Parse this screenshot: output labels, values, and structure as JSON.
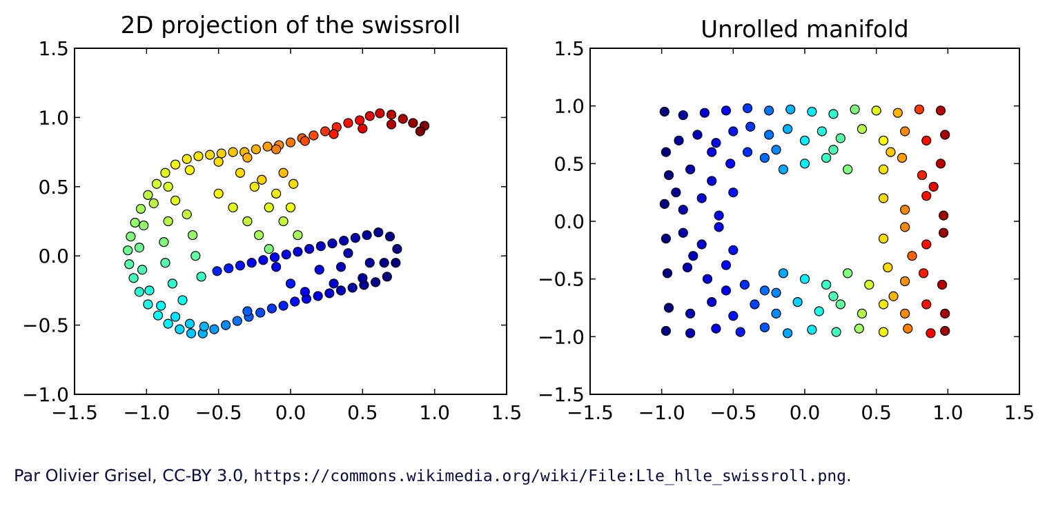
{
  "chart_data": [
    {
      "type": "scatter",
      "title": "2D projection of the swissroll",
      "xlabel": "",
      "ylabel": "",
      "xlim": [
        -1.5,
        1.5
      ],
      "ylim": [
        -1.0,
        1.5
      ],
      "xticks": [
        "−1.5",
        "−1.0",
        "−0.5",
        "0.0",
        "0.5",
        "1.0",
        "1.5"
      ],
      "xtick_values": [
        -1.5,
        -1.0,
        -0.5,
        0.0,
        0.5,
        1.0,
        1.5
      ],
      "yticks": [
        "−1.0",
        "−0.5",
        "0.0",
        "0.5",
        "1.0",
        "1.5"
      ],
      "ytick_values": [
        -1.0,
        -0.5,
        0.0,
        0.5,
        1.0,
        1.5
      ],
      "grid": false,
      "colormap": "jet",
      "points": [
        [
          0.93,
          0.94,
          1.0
        ],
        [
          0.85,
          0.96,
          0.98
        ],
        [
          0.78,
          0.99,
          0.96
        ],
        [
          0.7,
          1.02,
          0.94
        ],
        [
          0.62,
          1.03,
          0.92
        ],
        [
          0.55,
          1.01,
          0.9
        ],
        [
          0.48,
          0.98,
          0.88
        ],
        [
          0.4,
          0.96,
          0.86
        ],
        [
          0.32,
          0.93,
          0.84
        ],
        [
          0.24,
          0.9,
          0.82
        ],
        [
          0.16,
          0.87,
          0.8
        ],
        [
          0.08,
          0.85,
          0.78
        ],
        [
          0.0,
          0.82,
          0.76
        ],
        [
          -0.08,
          0.8,
          0.74
        ],
        [
          -0.16,
          0.79,
          0.72
        ],
        [
          -0.24,
          0.77,
          0.7
        ],
        [
          -0.32,
          0.75,
          0.69
        ],
        [
          -0.4,
          0.75,
          0.68
        ],
        [
          -0.48,
          0.74,
          0.67
        ],
        [
          -0.56,
          0.73,
          0.66
        ],
        [
          -0.64,
          0.72,
          0.65
        ],
        [
          -0.72,
          0.7,
          0.64
        ],
        [
          -0.8,
          0.66,
          0.62
        ],
        [
          -0.87,
          0.6,
          0.6
        ],
        [
          -0.93,
          0.52,
          0.58
        ],
        [
          -0.99,
          0.44,
          0.56
        ],
        [
          -1.04,
          0.34,
          0.54
        ],
        [
          -1.08,
          0.24,
          0.52
        ],
        [
          -1.11,
          0.14,
          0.5
        ],
        [
          -1.13,
          0.04,
          0.48
        ],
        [
          -1.12,
          -0.06,
          0.46
        ],
        [
          -1.09,
          -0.16,
          0.44
        ],
        [
          -1.05,
          -0.26,
          0.42
        ],
        [
          -0.99,
          -0.35,
          0.4
        ],
        [
          -0.92,
          -0.43,
          0.38
        ],
        [
          -0.85,
          -0.49,
          0.36
        ],
        [
          -0.77,
          -0.53,
          0.34
        ],
        [
          -0.69,
          -0.56,
          0.32
        ],
        [
          -0.61,
          -0.56,
          0.3
        ],
        [
          -0.53,
          -0.53,
          0.28
        ],
        [
          -0.45,
          -0.5,
          0.26
        ],
        [
          -0.37,
          -0.47,
          0.24
        ],
        [
          -0.29,
          -0.44,
          0.22
        ],
        [
          -0.21,
          -0.41,
          0.2
        ],
        [
          -0.13,
          -0.38,
          0.18
        ],
        [
          -0.05,
          -0.36,
          0.16
        ],
        [
          0.03,
          -0.33,
          0.14
        ],
        [
          0.11,
          -0.31,
          0.12
        ],
        [
          0.19,
          -0.29,
          0.1
        ],
        [
          0.27,
          -0.27,
          0.08
        ],
        [
          0.35,
          -0.25,
          0.06
        ],
        [
          0.43,
          -0.23,
          0.04
        ],
        [
          0.51,
          -0.21,
          0.02
        ],
        [
          0.59,
          -0.19,
          0.01
        ],
        [
          0.67,
          -0.15,
          0.0
        ],
        [
          0.73,
          -0.05,
          0.0
        ],
        [
          0.74,
          0.05,
          0.0
        ],
        [
          0.69,
          0.14,
          0.01
        ],
        [
          0.61,
          0.17,
          0.02
        ],
        [
          0.53,
          0.15,
          0.03
        ],
        [
          0.45,
          0.13,
          0.04
        ],
        [
          0.37,
          0.11,
          0.05
        ],
        [
          0.29,
          0.09,
          0.06
        ],
        [
          0.21,
          0.07,
          0.07
        ],
        [
          0.13,
          0.05,
          0.08
        ],
        [
          0.05,
          0.03,
          0.09
        ],
        [
          -0.03,
          0.01,
          0.1
        ],
        [
          -0.11,
          -0.01,
          0.11
        ],
        [
          -0.19,
          -0.03,
          0.12
        ],
        [
          -0.27,
          -0.05,
          0.13
        ],
        [
          -0.35,
          -0.07,
          0.14
        ],
        [
          -0.43,
          -0.09,
          0.15
        ],
        [
          -0.51,
          -0.11,
          0.16
        ],
        [
          0.9,
          0.9,
          1.0
        ],
        [
          0.7,
          0.95,
          0.95
        ],
        [
          0.5,
          0.92,
          0.9
        ],
        [
          0.3,
          0.88,
          0.85
        ],
        [
          0.1,
          0.83,
          0.8
        ],
        [
          -0.1,
          0.77,
          0.75
        ],
        [
          -0.3,
          0.71,
          0.7
        ],
        [
          -0.5,
          0.68,
          0.66
        ],
        [
          -0.7,
          0.62,
          0.63
        ],
        [
          -0.85,
          0.5,
          0.59
        ],
        [
          -0.95,
          0.38,
          0.56
        ],
        [
          -1.02,
          0.22,
          0.52
        ],
        [
          -1.05,
          0.06,
          0.48
        ],
        [
          -1.03,
          -0.1,
          0.45
        ],
        [
          -0.98,
          -0.25,
          0.41
        ],
        [
          -0.9,
          -0.36,
          0.38
        ],
        [
          -0.8,
          -0.44,
          0.35
        ],
        [
          -0.7,
          -0.49,
          0.33
        ],
        [
          -0.6,
          -0.51,
          0.3
        ],
        [
          -0.3,
          -0.4,
          0.22
        ],
        [
          0.1,
          -0.26,
          0.12
        ],
        [
          0.5,
          -0.16,
          0.03
        ],
        [
          0.65,
          -0.05,
          0.01
        ],
        [
          0.4,
          0.02,
          0.05
        ],
        [
          -0.1,
          -0.08,
          0.12
        ],
        [
          -0.8,
          0.4,
          0.6
        ],
        [
          -0.85,
          0.25,
          0.55
        ],
        [
          -0.88,
          0.1,
          0.5
        ],
        [
          -0.87,
          -0.05,
          0.46
        ],
        [
          -0.82,
          -0.2,
          0.42
        ],
        [
          -0.75,
          -0.32,
          0.39
        ],
        [
          -0.72,
          0.3,
          0.57
        ],
        [
          -0.68,
          0.15,
          0.52
        ],
        [
          -0.66,
          0.0,
          0.47
        ],
        [
          -0.62,
          -0.15,
          0.43
        ],
        [
          -0.5,
          0.45,
          0.63
        ],
        [
          -0.4,
          0.35,
          0.6
        ],
        [
          -0.3,
          0.25,
          0.57
        ],
        [
          -0.22,
          0.15,
          0.54
        ],
        [
          -0.15,
          0.05,
          0.5
        ],
        [
          -0.2,
          0.55,
          0.67
        ],
        [
          -0.1,
          0.45,
          0.64
        ],
        [
          0.0,
          0.35,
          0.61
        ],
        [
          -0.05,
          0.6,
          0.69
        ],
        [
          0.02,
          0.52,
          0.66
        ],
        [
          -0.35,
          0.6,
          0.66
        ],
        [
          -0.25,
          0.5,
          0.64
        ],
        [
          -0.15,
          0.35,
          0.6
        ],
        [
          -0.05,
          0.25,
          0.57
        ],
        [
          0.05,
          0.15,
          0.54
        ],
        [
          0.2,
          -0.1,
          0.1
        ],
        [
          0.35,
          -0.08,
          0.07
        ],
        [
          0.55,
          -0.05,
          0.03
        ],
        [
          0.0,
          -0.2,
          0.15
        ],
        [
          0.3,
          -0.2,
          0.08
        ]
      ]
    },
    {
      "type": "scatter",
      "title": "Unrolled manifold",
      "xlabel": "",
      "ylabel": "",
      "xlim": [
        -1.5,
        1.5
      ],
      "ylim": [
        -1.5,
        1.5
      ],
      "xticks": [
        "−1.5",
        "−1.0",
        "−0.5",
        "0.0",
        "0.5",
        "1.0",
        "1.5"
      ],
      "xtick_values": [
        -1.5,
        -1.0,
        -0.5,
        0.0,
        0.5,
        1.0,
        1.5
      ],
      "yticks": [
        "−1.5",
        "−1.0",
        "−0.5",
        "0.0",
        "0.5",
        "1.0",
        "1.5"
      ],
      "ytick_values": [
        -1.5,
        -1.0,
        -0.5,
        0.0,
        0.5,
        1.0,
        1.5
      ],
      "grid": false,
      "colormap": "jet",
      "points": [
        [
          -0.98,
          0.95,
          0.0
        ],
        [
          -0.85,
          0.92,
          0.03
        ],
        [
          -0.7,
          0.94,
          0.08
        ],
        [
          -0.55,
          0.96,
          0.13
        ],
        [
          -0.4,
          0.98,
          0.18
        ],
        [
          -0.25,
          0.96,
          0.24
        ],
        [
          -0.1,
          0.97,
          0.3
        ],
        [
          0.05,
          0.95,
          0.36
        ],
        [
          0.2,
          0.93,
          0.42
        ],
        [
          0.35,
          0.97,
          0.5
        ],
        [
          0.5,
          0.96,
          0.6
        ],
        [
          0.65,
          0.94,
          0.7
        ],
        [
          0.8,
          0.97,
          0.82
        ],
        [
          0.95,
          0.96,
          0.95
        ],
        [
          -0.97,
          0.6,
          0.0
        ],
        [
          -0.88,
          0.7,
          0.03
        ],
        [
          -0.75,
          0.75,
          0.06
        ],
        [
          -0.62,
          0.68,
          0.1
        ],
        [
          -0.5,
          0.78,
          0.14
        ],
        [
          -0.38,
          0.82,
          0.18
        ],
        [
          -0.25,
          0.75,
          0.24
        ],
        [
          -0.12,
          0.8,
          0.3
        ],
        [
          0.0,
          0.7,
          0.36
        ],
        [
          0.12,
          0.78,
          0.41
        ],
        [
          0.25,
          0.72,
          0.46
        ],
        [
          0.4,
          0.8,
          0.55
        ],
        [
          0.55,
          0.7,
          0.63
        ],
        [
          0.7,
          0.78,
          0.74
        ],
        [
          0.85,
          0.7,
          0.86
        ],
        [
          0.98,
          0.75,
          0.96
        ],
        [
          -0.95,
          0.4,
          0.0
        ],
        [
          -0.8,
          0.45,
          0.05
        ],
        [
          -0.65,
          0.35,
          0.09
        ],
        [
          -0.52,
          0.5,
          0.13
        ],
        [
          -0.4,
          0.6,
          0.17
        ],
        [
          -0.28,
          0.55,
          0.23
        ],
        [
          -0.15,
          0.45,
          0.29
        ],
        [
          0.0,
          0.5,
          0.36
        ],
        [
          0.15,
          0.55,
          0.43
        ],
        [
          0.3,
          0.45,
          0.5
        ],
        [
          0.55,
          0.45,
          0.65
        ],
        [
          0.68,
          0.55,
          0.72
        ],
        [
          0.82,
          0.4,
          0.84
        ],
        [
          0.95,
          0.5,
          0.94
        ],
        [
          -0.98,
          0.15,
          0.0
        ],
        [
          -0.85,
          0.1,
          0.04
        ],
        [
          -0.72,
          0.2,
          0.08
        ],
        [
          -0.6,
          0.05,
          0.11
        ],
        [
          -0.5,
          0.25,
          0.14
        ],
        [
          0.55,
          0.2,
          0.66
        ],
        [
          0.7,
          0.1,
          0.74
        ],
        [
          0.85,
          0.22,
          0.86
        ],
        [
          0.97,
          0.05,
          0.97
        ],
        [
          -0.97,
          -0.15,
          0.0
        ],
        [
          -0.85,
          -0.1,
          0.04
        ],
        [
          -0.72,
          -0.2,
          0.08
        ],
        [
          -0.6,
          -0.05,
          0.11
        ],
        [
          -0.5,
          -0.25,
          0.14
        ],
        [
          0.55,
          -0.15,
          0.66
        ],
        [
          0.7,
          -0.05,
          0.74
        ],
        [
          0.85,
          -0.2,
          0.86
        ],
        [
          0.97,
          -0.1,
          0.97
        ],
        [
          -0.96,
          -0.45,
          0.0
        ],
        [
          -0.82,
          -0.4,
          0.05
        ],
        [
          -0.68,
          -0.5,
          0.09
        ],
        [
          -0.55,
          -0.38,
          0.13
        ],
        [
          -0.42,
          -0.55,
          0.17
        ],
        [
          -0.28,
          -0.6,
          0.23
        ],
        [
          -0.15,
          -0.45,
          0.29
        ],
        [
          0.0,
          -0.5,
          0.36
        ],
        [
          0.15,
          -0.55,
          0.43
        ],
        [
          0.3,
          -0.45,
          0.5
        ],
        [
          0.45,
          -0.55,
          0.58
        ],
        [
          0.58,
          -0.4,
          0.66
        ],
        [
          0.7,
          -0.52,
          0.73
        ],
        [
          0.83,
          -0.45,
          0.85
        ],
        [
          0.96,
          -0.55,
          0.95
        ],
        [
          -0.95,
          -0.75,
          0.0
        ],
        [
          -0.8,
          -0.8,
          0.05
        ],
        [
          -0.65,
          -0.7,
          0.09
        ],
        [
          -0.5,
          -0.82,
          0.14
        ],
        [
          -0.35,
          -0.72,
          0.19
        ],
        [
          -0.2,
          -0.8,
          0.26
        ],
        [
          -0.05,
          -0.7,
          0.33
        ],
        [
          0.1,
          -0.78,
          0.4
        ],
        [
          0.25,
          -0.72,
          0.47
        ],
        [
          0.4,
          -0.8,
          0.55
        ],
        [
          0.55,
          -0.72,
          0.64
        ],
        [
          0.7,
          -0.8,
          0.74
        ],
        [
          0.85,
          -0.72,
          0.86
        ],
        [
          0.98,
          -0.8,
          0.96
        ],
        [
          -0.97,
          -0.95,
          0.0
        ],
        [
          -0.8,
          -0.97,
          0.05
        ],
        [
          -0.62,
          -0.93,
          0.1
        ],
        [
          -0.45,
          -0.96,
          0.15
        ],
        [
          -0.28,
          -0.92,
          0.21
        ],
        [
          -0.12,
          -0.97,
          0.29
        ],
        [
          0.05,
          -0.94,
          0.36
        ],
        [
          0.22,
          -0.96,
          0.44
        ],
        [
          0.38,
          -0.93,
          0.53
        ],
        [
          0.55,
          -0.96,
          0.63
        ],
        [
          0.72,
          -0.93,
          0.75
        ],
        [
          0.88,
          -0.97,
          0.88
        ],
        [
          0.98,
          -0.95,
          0.97
        ],
        [
          -0.9,
          0.25,
          0.02
        ],
        [
          -0.78,
          -0.3,
          0.06
        ],
        [
          -0.65,
          0.6,
          0.1
        ],
        [
          -0.55,
          -0.6,
          0.12
        ],
        [
          0.6,
          0.6,
          0.68
        ],
        [
          0.75,
          -0.3,
          0.78
        ],
        [
          0.9,
          0.3,
          0.9
        ],
        [
          0.62,
          -0.65,
          0.7
        ],
        [
          -0.2,
          0.62,
          0.26
        ],
        [
          0.2,
          0.62,
          0.45
        ],
        [
          -0.2,
          -0.62,
          0.26
        ],
        [
          0.2,
          -0.65,
          0.45
        ]
      ]
    }
  ],
  "caption": {
    "prefix": "Par Olivier Grisel, CC-BY 3.0, ",
    "url": "https://commons.wikimedia.org/wiki/File:Lle_hlle_swissroll.png",
    "suffix": "."
  }
}
